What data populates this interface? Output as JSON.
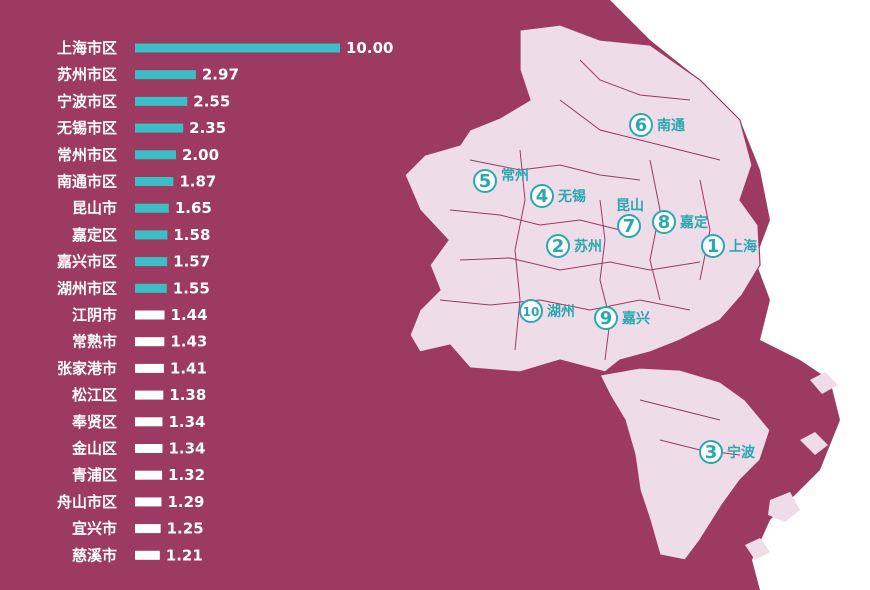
{
  "colors": {
    "background": "#9c3a62",
    "land": "#eedce8",
    "border": "#9c3a62",
    "highlight_bar": "#3bbfc6",
    "normal_bar": "#ffffff",
    "marker": "#2aa7b0"
  },
  "chart_data": {
    "type": "bar",
    "orientation": "horizontal",
    "title": "",
    "xlabel": "",
    "ylabel": "",
    "xlim": [
      0,
      10
    ],
    "grid": false,
    "categories": [
      "上海市区",
      "苏州市区",
      "宁波市区",
      "无锡市区",
      "常州市区",
      "南通市区",
      "昆山市",
      "嘉定区",
      "嘉兴市区",
      "湖州市区",
      "江阴市",
      "常熟市",
      "张家港市",
      "松江区",
      "奉贤区",
      "金山区",
      "青浦区",
      "舟山市区",
      "宜兴市",
      "慈溪市"
    ],
    "value_labels": [
      "10.00",
      "2.97",
      "2.55",
      "2.35",
      "2.00",
      "1.87",
      "1.65",
      "1.58",
      "1.57",
      "1.55",
      "1.44",
      "1.43",
      "1.41",
      "1.38",
      "1.34",
      "1.34",
      "1.32",
      "1.29",
      "1.25",
      "1.21"
    ],
    "values": [
      10.0,
      2.97,
      2.55,
      2.35,
      2.0,
      1.87,
      1.65,
      1.58,
      1.57,
      1.55,
      1.44,
      1.43,
      1.41,
      1.38,
      1.34,
      1.34,
      1.32,
      1.29,
      1.25,
      1.21
    ],
    "highlighted_count": 10
  },
  "map": {
    "markers": [
      {
        "num": "1",
        "name": "上海"
      },
      {
        "num": "2",
        "name": "苏州"
      },
      {
        "num": "3",
        "name": "宁波"
      },
      {
        "num": "4",
        "name": "无锡"
      },
      {
        "num": "5",
        "name": "常州"
      },
      {
        "num": "6",
        "name": "南通"
      },
      {
        "num": "7",
        "name": "昆山"
      },
      {
        "num": "8",
        "name": "嘉定"
      },
      {
        "num": "9",
        "name": "嘉兴"
      },
      {
        "num": "10",
        "name": "湖州"
      }
    ]
  }
}
